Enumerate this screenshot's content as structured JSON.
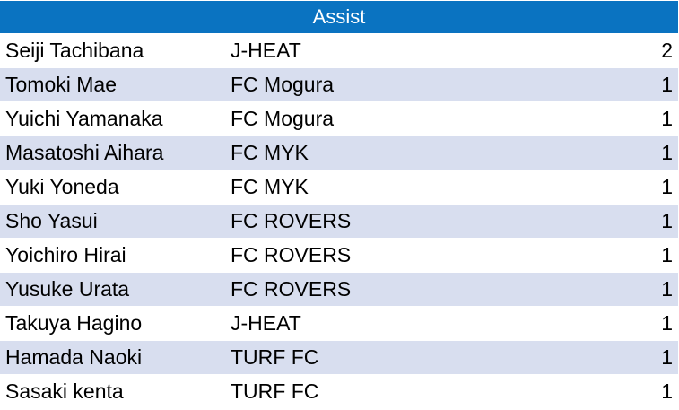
{
  "table": {
    "title": "Assist",
    "rows": [
      {
        "player": "Seiji Tachibana",
        "team": "J-HEAT",
        "assists": "2"
      },
      {
        "player": "Tomoki Mae",
        "team": "FC Mogura",
        "assists": "1"
      },
      {
        "player": "Yuichi Yamanaka",
        "team": "FC Mogura",
        "assists": "1"
      },
      {
        "player": "Masatoshi Aihara",
        "team": "FC MYK",
        "assists": "1"
      },
      {
        "player": "Yuki Yoneda",
        "team": "FC MYK",
        "assists": "1"
      },
      {
        "player": "Sho Yasui",
        "team": "FC ROVERS",
        "assists": "1"
      },
      {
        "player": "Yoichiro Hirai",
        "team": "FC ROVERS",
        "assists": "1"
      },
      {
        "player": "Yusuke Urata",
        "team": "FC ROVERS",
        "assists": "1"
      },
      {
        "player": "Takuya Hagino",
        "team": "J-HEAT",
        "assists": "1"
      },
      {
        "player": "Hamada Naoki",
        "team": "TURF FC",
        "assists": "1"
      },
      {
        "player": "Sasaki kenta",
        "team": "TURF FC",
        "assists": "1"
      }
    ]
  },
  "colors": {
    "header_bg": "#0a73c1",
    "header_text": "#ffffff",
    "band_shade": "#d8deef",
    "band_plain": "#ffffff"
  }
}
